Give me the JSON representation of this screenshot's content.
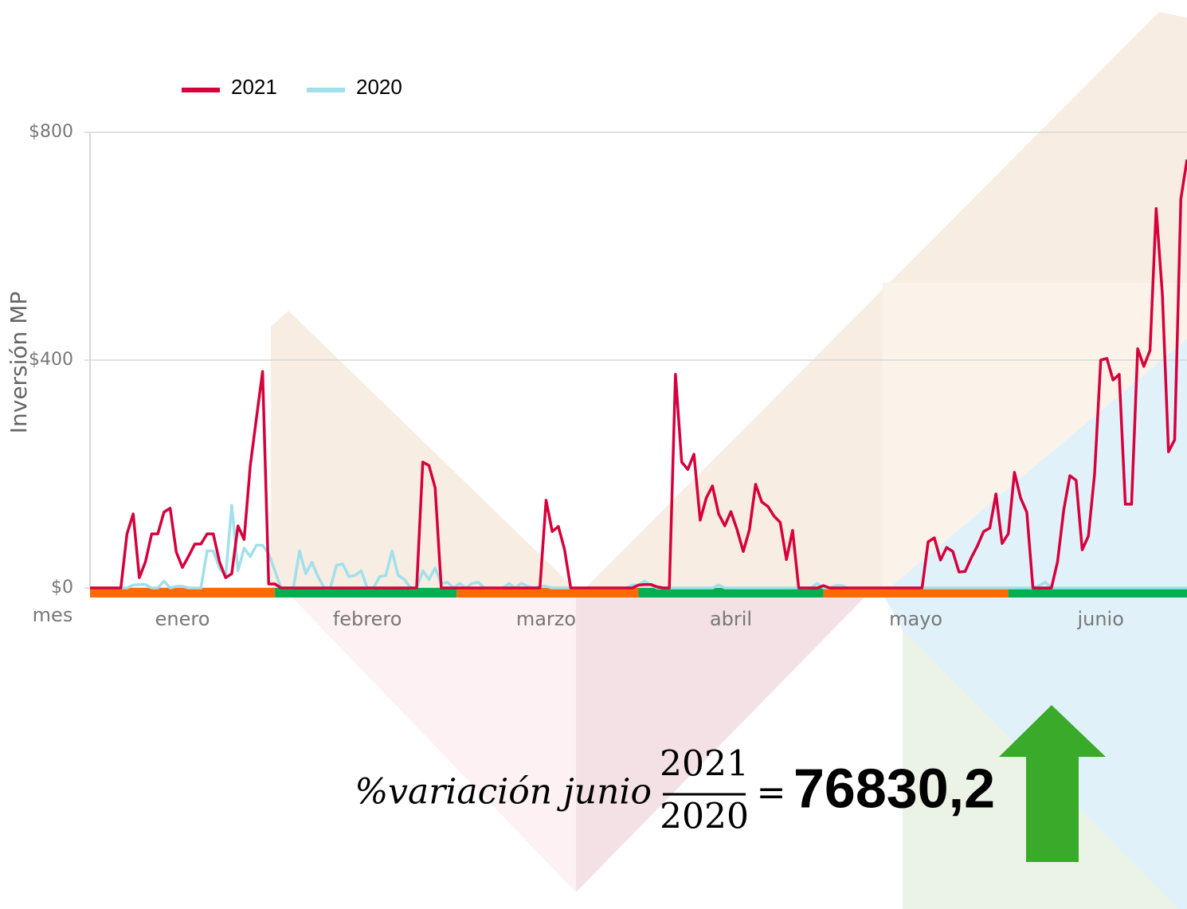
{
  "chart_data": {
    "type": "line",
    "y_label": "Inversión MP",
    "x_label": "mes",
    "ylim": [
      0,
      800
    ],
    "yticks": [
      {
        "value": 0,
        "label": "$0"
      },
      {
        "value": 400,
        "label": "$400"
      },
      {
        "value": 800,
        "label": "$800"
      }
    ],
    "grid": true,
    "legend": "top-left",
    "band_colors": [
      "#ff6a00",
      "#00b050"
    ],
    "categories": [
      null,
      null,
      null,
      null,
      null,
      null,
      null,
      null,
      null,
      null,
      null,
      null,
      null,
      null,
      null,
      "enero",
      null,
      null,
      null,
      null,
      null,
      null,
      null,
      null,
      null,
      null,
      null,
      null,
      null,
      null,
      null,
      null,
      null,
      null,
      null,
      null,
      null,
      null,
      null,
      null,
      null,
      null,
      null,
      null,
      null,
      "febrero",
      null,
      null,
      null,
      null,
      null,
      null,
      null,
      null,
      null,
      null,
      null,
      null,
      null,
      null,
      null,
      null,
      null,
      null,
      null,
      null,
      null,
      null,
      null,
      null,
      null,
      null,
      null,
      null,
      "marzo",
      null,
      null,
      null,
      null,
      null,
      null,
      null,
      null,
      null,
      null,
      null,
      null,
      null,
      null,
      null,
      null,
      null,
      null,
      null,
      null,
      null,
      null,
      null,
      null,
      null,
      null,
      null,
      null,
      null,
      "abril",
      null,
      null,
      null,
      null,
      null,
      null,
      null,
      null,
      null,
      null,
      null,
      null,
      null,
      null,
      null,
      null,
      null,
      null,
      null,
      null,
      null,
      null,
      null,
      null,
      null,
      null,
      null,
      null,
      null,
      "mayo",
      null,
      null,
      null,
      null,
      null,
      null,
      null,
      null,
      null,
      null,
      null,
      null,
      null,
      null,
      null,
      null,
      null,
      null,
      null,
      null,
      null,
      null,
      null,
      null,
      null,
      null,
      null,
      null,
      null,
      "junio",
      null,
      null,
      null,
      null,
      null,
      null,
      null,
      null,
      null,
      null,
      null,
      null,
      null,
      null
    ],
    "series": [
      {
        "name": "2021",
        "color": "#d6003c",
        "values": [
          0,
          0,
          0,
          0,
          0,
          0,
          95,
          130,
          18,
          46,
          95,
          95,
          133,
          140,
          63,
          36,
          56,
          77,
          77,
          95,
          95,
          46,
          18,
          25,
          109,
          85,
          214,
          298,
          380,
          7,
          7,
          0,
          0,
          0,
          0,
          0,
          0,
          0,
          0,
          0,
          0,
          0,
          0,
          0,
          0,
          0,
          0,
          0,
          0,
          0,
          0,
          0,
          0,
          0,
          221,
          215,
          176,
          0,
          0,
          0,
          0,
          0,
          0,
          0,
          0,
          0,
          0,
          0,
          0,
          0,
          0,
          0,
          0,
          0,
          154,
          99,
          108,
          67,
          0,
          0,
          0,
          0,
          0,
          0,
          0,
          0,
          0,
          0,
          0,
          5,
          6,
          6,
          2,
          0,
          0,
          375,
          221,
          208,
          235,
          119,
          158,
          179,
          130,
          109,
          134,
          102,
          64,
          102,
          182,
          151,
          143,
          126,
          115,
          50,
          101,
          0,
          0,
          0,
          0,
          4,
          0,
          0,
          0,
          0,
          0,
          0,
          0,
          0,
          0,
          0,
          0,
          0,
          0,
          0,
          0,
          0,
          81,
          88,
          49,
          71,
          64,
          28,
          29,
          53,
          74,
          99,
          105,
          165,
          78,
          95,
          203,
          158,
          133,
          0,
          0,
          0,
          0,
          46,
          137,
          197,
          189,
          67,
          91,
          200,
          400,
          403,
          365,
          375,
          147,
          147,
          420,
          389,
          417,
          666,
          515,
          239,
          260,
          683,
          752
        ]
      },
      {
        "name": "2020",
        "color": "#a0e0ea",
        "values": [
          0,
          0,
          0,
          0,
          0,
          0,
          0,
          5,
          6,
          6,
          0,
          0,
          12,
          0,
          3,
          3,
          0,
          0,
          0,
          65,
          65,
          35,
          20,
          145,
          30,
          70,
          55,
          75,
          75,
          60,
          30,
          0,
          0,
          0,
          65,
          25,
          45,
          20,
          0,
          0,
          40,
          42,
          20,
          22,
          30,
          0,
          0,
          20,
          22,
          65,
          22,
          15,
          0,
          0,
          30,
          15,
          35,
          8,
          10,
          0,
          8,
          0,
          8,
          10,
          0,
          0,
          0,
          0,
          8,
          0,
          8,
          3,
          0,
          3,
          3,
          0,
          0,
          0,
          0,
          0,
          0,
          0,
          0,
          0,
          0,
          0,
          0,
          0,
          5,
          5,
          12,
          5,
          0,
          0,
          0,
          0,
          0,
          0,
          0,
          0,
          0,
          0,
          5,
          0,
          0,
          0,
          0,
          0,
          0,
          0,
          0,
          0,
          0,
          0,
          0,
          0,
          0,
          0,
          8,
          0,
          0,
          4,
          4,
          0,
          0,
          0,
          0,
          0,
          0,
          0,
          0,
          0,
          0,
          0,
          0,
          0,
          0,
          0,
          0,
          0,
          0,
          0,
          0,
          0,
          0,
          0,
          0,
          0,
          0,
          0,
          0,
          0,
          0,
          0,
          4,
          10,
          0,
          0,
          0,
          0,
          0,
          0,
          0,
          0,
          0,
          0,
          0,
          0,
          0,
          0,
          0,
          0,
          0,
          0,
          0,
          0,
          0,
          0,
          0
        ]
      }
    ]
  },
  "formula": {
    "label": "%variación junio",
    "numerator": "2021",
    "denominator": "2020",
    "equals": "=",
    "result": "76830,2"
  }
}
